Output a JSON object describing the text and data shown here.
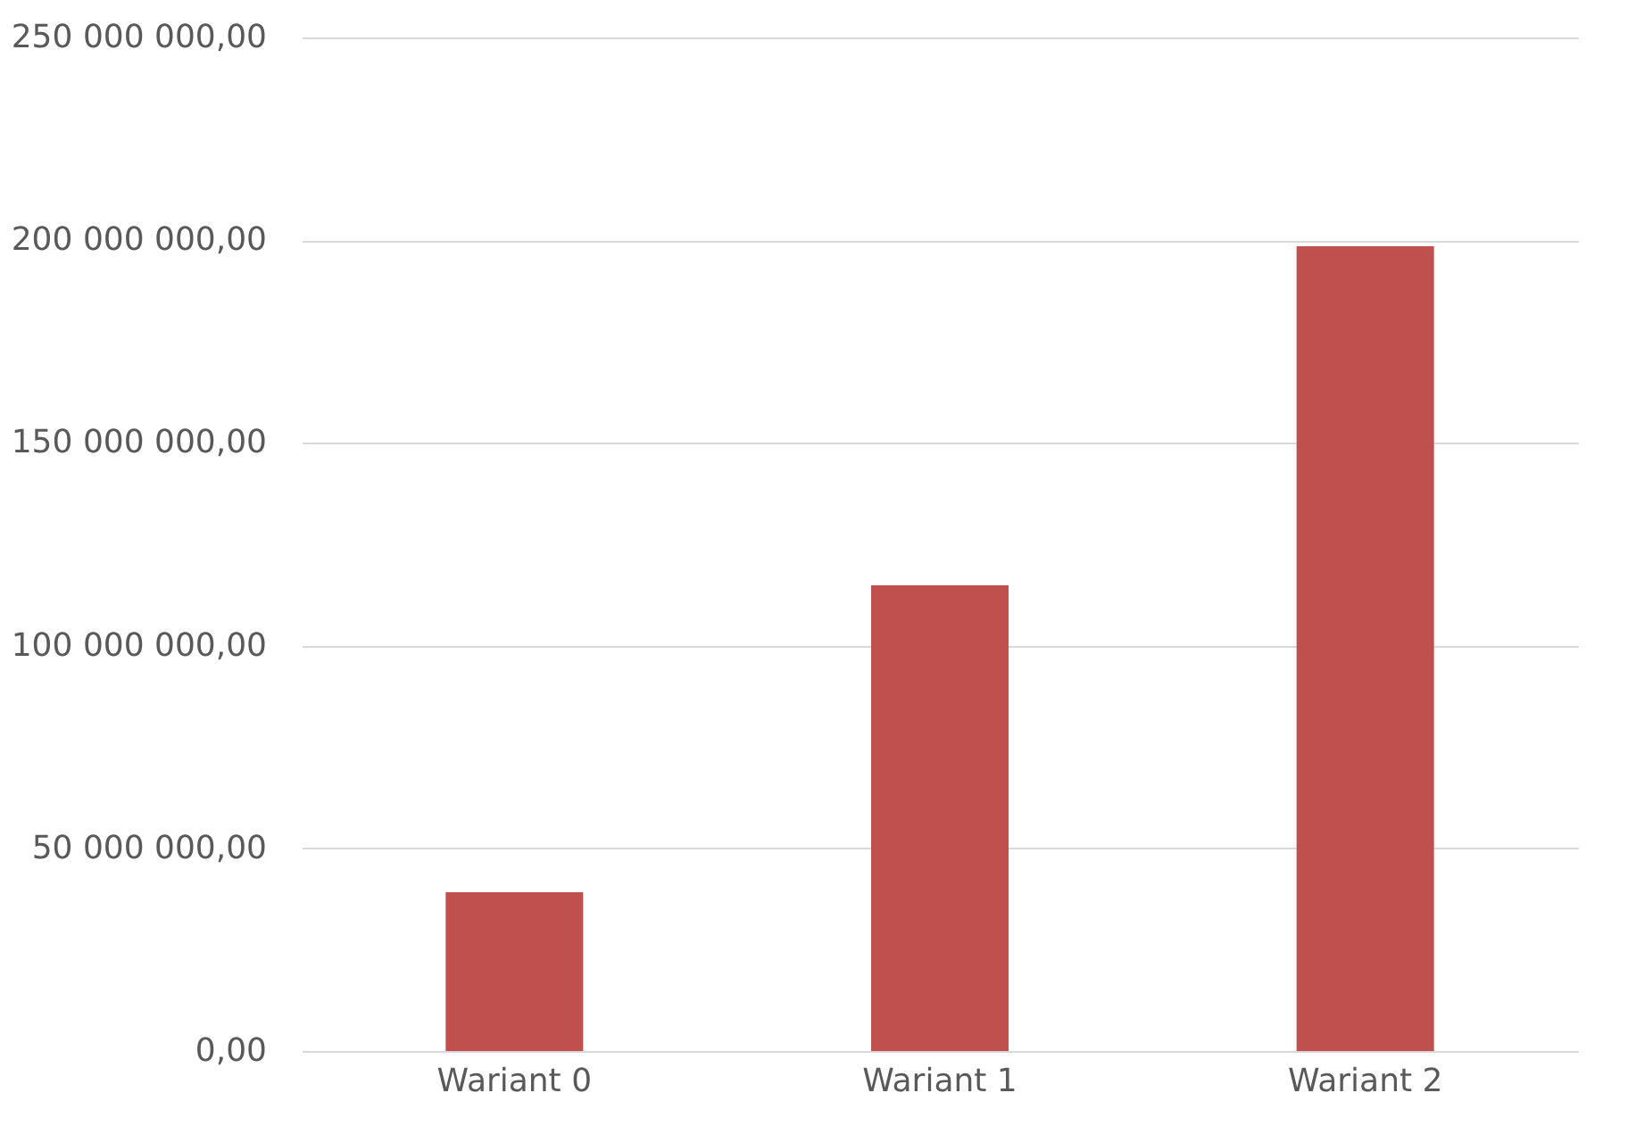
{
  "chart_data": {
    "type": "bar",
    "categories": [
      "Wariant 0",
      "Wariant 1",
      "Wariant 2"
    ],
    "values": [
      39200000,
      114900000,
      198500000
    ],
    "color": "#c0504d",
    "ylim": [
      0,
      250000000
    ],
    "yticks": [
      {
        "value": 0,
        "label": "0,00"
      },
      {
        "value": 50000000,
        "label": "50 000 000,00"
      },
      {
        "value": 100000000,
        "label": "100 000 000,00"
      },
      {
        "value": 150000000,
        "label": "150 000 000,00"
      },
      {
        "value": 200000000,
        "label": "200 000 000,00"
      },
      {
        "value": 250000000,
        "label": "250 000 000,00"
      }
    ],
    "grid": "y"
  }
}
